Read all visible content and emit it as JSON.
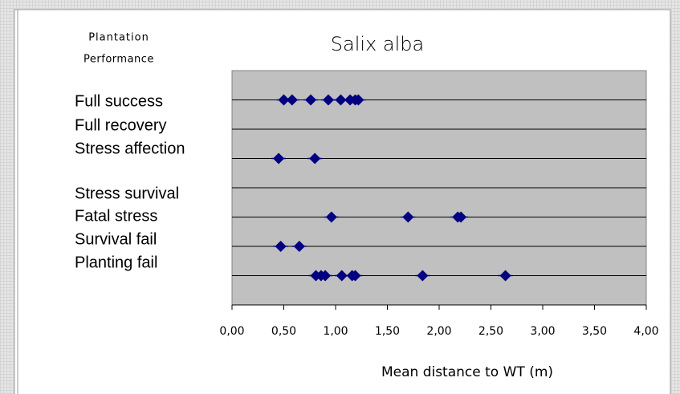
{
  "chart_data": {
    "type": "scatter",
    "title": "Salix alba",
    "ylabel_lines": [
      "Plantation",
      "Performance"
    ],
    "xlabel": "Mean distance to WT (m)",
    "annotations": [
      "Full success",
      "Full recovery",
      "Stress affection",
      "Stress survival",
      "Fatal stress",
      "Survival fail",
      "Planting fail"
    ],
    "xlim": [
      0,
      4
    ],
    "xticks": [
      {
        "value": 0,
        "label": "0,00"
      },
      {
        "value": 0.5,
        "label": "0,50"
      },
      {
        "value": 1,
        "label": "1,00"
      },
      {
        "value": 1.5,
        "label": "1,50"
      },
      {
        "value": 2,
        "label": "2,00"
      },
      {
        "value": 2.5,
        "label": "2,50"
      },
      {
        "value": 3,
        "label": "3,00"
      },
      {
        "value": 3.5,
        "label": "3,50"
      },
      {
        "value": 4,
        "label": "4,00"
      }
    ],
    "ylim": [
      0,
      8
    ],
    "yticks": [
      1,
      2,
      3,
      4,
      5,
      6,
      7
    ],
    "grid": true,
    "plot_background": "#c0c0c0",
    "series": [
      {
        "color": "#000080",
        "x": [
          0.5,
          0.58,
          0.76,
          0.93,
          1.05,
          1.14,
          1.19,
          1.22,
          0.45,
          0.8,
          0.96,
          1.7,
          2.18,
          2.21,
          0.47,
          0.65,
          0.81,
          0.86,
          0.9,
          1.06,
          1.16,
          1.19,
          1.84,
          2.64
        ],
        "y": [
          7,
          7,
          7,
          7,
          7,
          7,
          7,
          7,
          5,
          5,
          3,
          3,
          3,
          3,
          2,
          2,
          1,
          1,
          1,
          1,
          1,
          1,
          1,
          1
        ]
      }
    ]
  }
}
